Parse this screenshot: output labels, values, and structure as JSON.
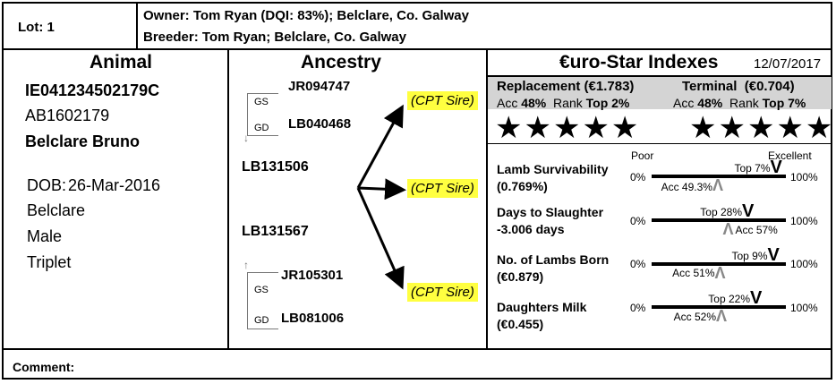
{
  "lot": "Lot: 1",
  "owner": "Owner: Tom Ryan (DQI: 83%); Belclare, Co. Galway",
  "breeder": "Breeder: Tom Ryan; Belclare, Co. Galway",
  "animal": {
    "heading": "Animal",
    "id": "IE041234502179C",
    "tag": "AB1602179",
    "name": "Belclare Bruno",
    "dob_label": "DOB:",
    "dob": "26-Mar-2016",
    "breed": "Belclare",
    "sex": "Male",
    "birth_type": "Triplet"
  },
  "ancestry": {
    "heading": "Ancestry",
    "sire_top": "JR094747",
    "gs_label_top": "GS",
    "gd_label_top": "GD",
    "dam_top": "LB040468",
    "sire": "LB131506",
    "dam": "LB131567",
    "sire_bottom": "JR105301",
    "gs_label_bottom": "GS",
    "gd_label_bottom": "GD",
    "dam_bottom": "LB081006",
    "cpt_1": "(CPT Sire)",
    "cpt_2": "(CPT Sire)",
    "cpt_3": "(CPT Sire)"
  },
  "indexes": {
    "heading": "€uro-Star Indexes",
    "date": "12/07/2017",
    "replacement": {
      "title": "Replacement (€1.783)",
      "acc_label": "Acc",
      "acc": "48%",
      "rank_label": "Rank",
      "rank": "Top 2%",
      "stars": 5,
      "stars_text": "★★★★★"
    },
    "terminal": {
      "title": "Terminal  (€0.704)",
      "acc_label": "Acc",
      "acc": "48%",
      "rank_label": "Rank",
      "rank": "Top 7%",
      "stars": 5,
      "stars_text": "★★★★★"
    },
    "scale_poor": "Poor",
    "scale_excellent": "Excellent",
    "traits": [
      {
        "name": "Lamb Survivability",
        "value": "(0.769%)",
        "min": "0%",
        "max": "100%",
        "top": "Top 7%",
        "acc": "Acc 49.3%",
        "top_pct": 93,
        "acc_pct": 49.3
      },
      {
        "name": "Days to Slaughter",
        "value": "-3.006 days",
        "min": "0%",
        "max": "100%",
        "top": "Top 28%",
        "acc": "Acc 57%",
        "top_pct": 72,
        "acc_pct": 57
      },
      {
        "name": "No. of Lambs Born",
        "value": "(€0.879)",
        "min": "0%",
        "max": "100%",
        "top": "Top 9%",
        "acc": "Acc 51%",
        "top_pct": 91,
        "acc_pct": 51
      },
      {
        "name": "Daughters Milk",
        "value": "(€0.455)",
        "min": "0%",
        "max": "100%",
        "top": "Top 22%",
        "acc": "Acc 52%",
        "top_pct": 78,
        "acc_pct": 52
      }
    ],
    "v_mark": "V",
    "caret_mark": "Λ"
  },
  "comment": "Comment:"
}
